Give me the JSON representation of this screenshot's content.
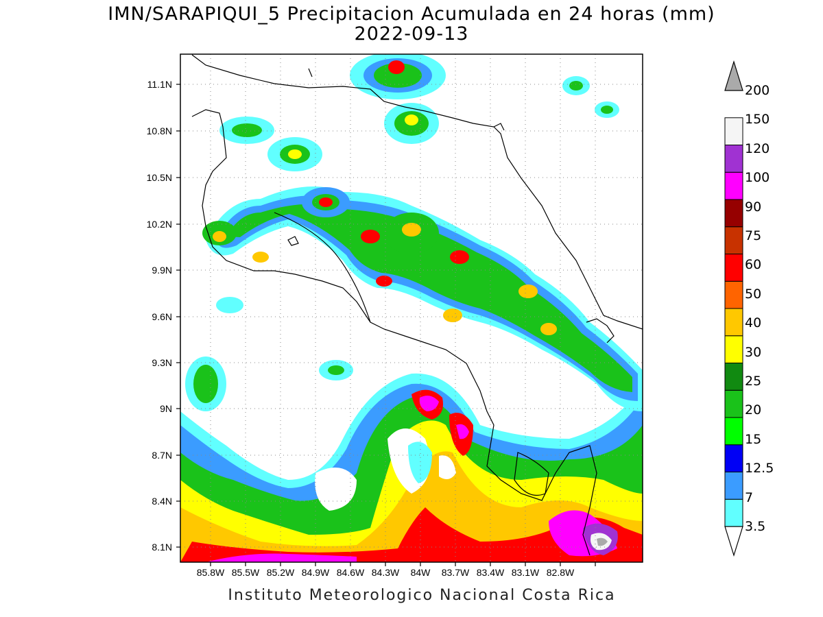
{
  "title": {
    "line1": "IMN/SARAPIQUI_5 Precipitacion Acumulada en 24 horas (mm)",
    "line2": "2022-09-13"
  },
  "footer": "Instituto Meteorologico Nacional Costa Rica",
  "map": {
    "lat_labels": [
      "11.1N",
      "10.8N",
      "10.5N",
      "10.2N",
      "9.9N",
      "9.6N",
      "9.3N",
      "9N",
      "8.7N",
      "8.4N",
      "8.1N"
    ],
    "lon_labels": [
      "85.8W",
      "85.5W",
      "85.2W",
      "84.9W",
      "84.6W",
      "84.3W",
      "84W",
      "83.7W",
      "83.4W",
      "83.1W",
      "82.8W"
    ],
    "grid": true
  },
  "colorbar": {
    "levels": [
      "3.5",
      "7",
      "12.5",
      "15",
      "20",
      "25",
      "30",
      "40",
      "50",
      "60",
      "75",
      "90",
      "100",
      "120",
      "150",
      "200"
    ],
    "colors": [
      "#61ffff",
      "#3b9cff",
      "#0000f5",
      "#00ff00",
      "#1ac21a",
      "#118a11",
      "#ffff00",
      "#ffc800",
      "#ff6400",
      "#ff0000",
      "#c83200",
      "#960000",
      "#ff00ff",
      "#a032d2",
      "#f5f5f5",
      "#aaaaaa"
    ],
    "under_color": "#ffffff",
    "over_color": "#aaaaaa"
  }
}
